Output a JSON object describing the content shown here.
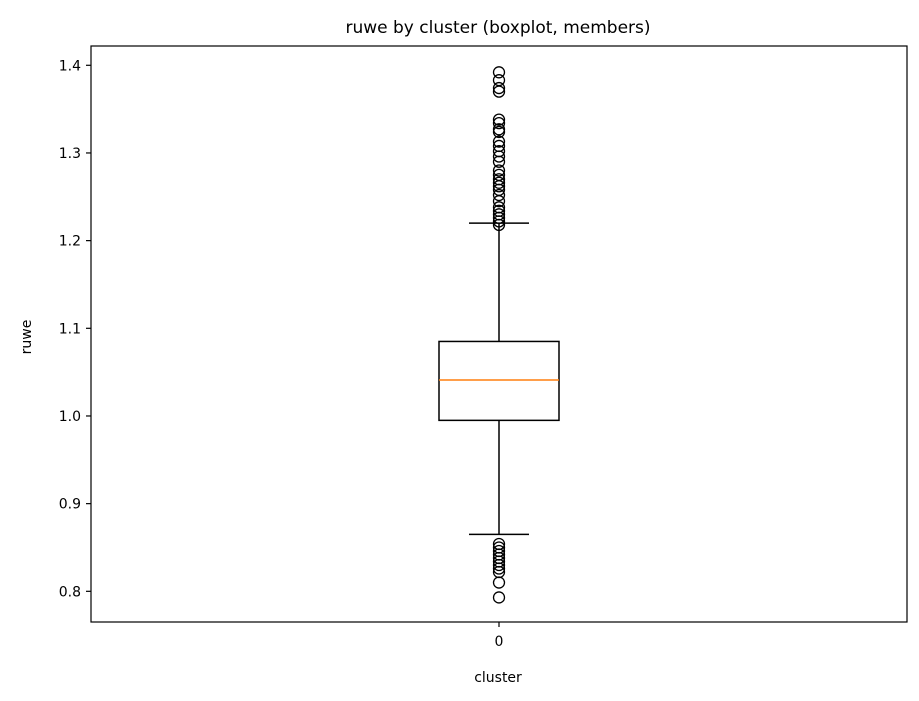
{
  "chart_data": {
    "type": "boxplot",
    "title": "ruwe by cluster (boxplot, members)",
    "xlabel": "cluster",
    "ylabel": "ruwe",
    "ylim": [
      0.765,
      1.422
    ],
    "yticks": [
      "0.8",
      "0.9",
      "1.0",
      "1.1",
      "1.2",
      "1.3",
      "1.4"
    ],
    "categories": [
      "0"
    ],
    "grid": false,
    "boxes": [
      {
        "category": "0",
        "whisker_low": 0.865,
        "q1": 0.995,
        "median": 1.041,
        "q3": 1.085,
        "whisker_high": 1.22,
        "outliers": [
          0.793,
          0.81,
          0.822,
          0.826,
          0.83,
          0.834,
          0.838,
          0.842,
          0.846,
          0.85,
          0.854,
          1.218,
          1.222,
          1.226,
          1.23,
          1.234,
          1.238,
          1.245,
          1.252,
          1.258,
          1.262,
          1.266,
          1.27,
          1.275,
          1.28,
          1.29,
          1.296,
          1.302,
          1.308,
          1.313,
          1.324,
          1.327,
          1.334,
          1.338,
          1.37,
          1.374,
          1.383,
          1.392
        ]
      }
    ],
    "colors": {
      "box": "#000000",
      "median": "#ff7f0e",
      "outlier_edge": "#000000"
    }
  }
}
